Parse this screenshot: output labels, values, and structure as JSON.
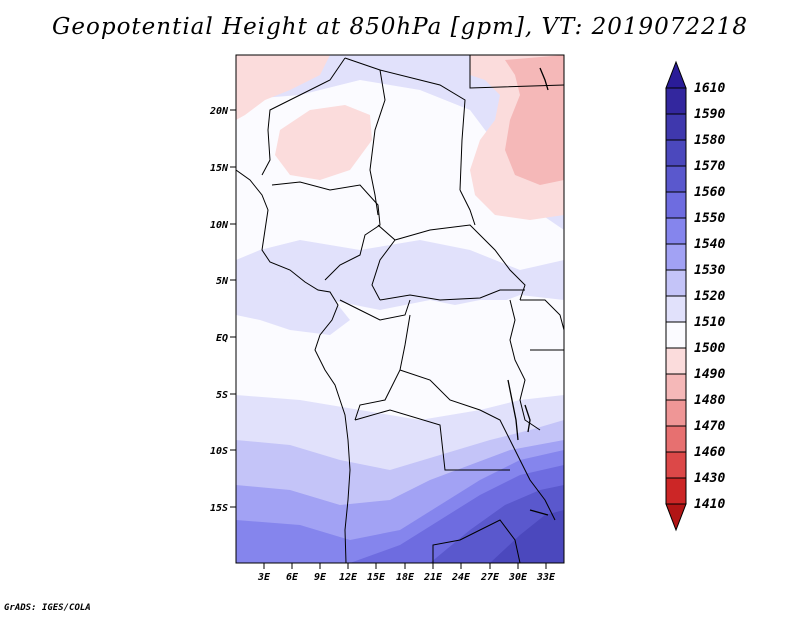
{
  "title": "Geopotential Height at 850hPa [gpm], VT: 2019072218",
  "credit": "GrADS: IGES/COLA",
  "lat_labels": [
    "20N",
    "15N",
    "10N",
    "5N",
    "EQ",
    "5S",
    "10S",
    "15S"
  ],
  "lon_labels": [
    "3E",
    "6E",
    "9E",
    "12E",
    "15E",
    "18E",
    "21E",
    "24E",
    "27E",
    "30E",
    "33E"
  ],
  "colorbar": {
    "labels": [
      "1610",
      "1590",
      "1580",
      "1570",
      "1560",
      "1550",
      "1540",
      "1530",
      "1520",
      "1510",
      "1500",
      "1490",
      "1480",
      "1470",
      "1460",
      "1430",
      "1410"
    ],
    "colors": [
      "#2a1c98",
      "#33279e",
      "#3f38ad",
      "#4b48bd",
      "#5a58cd",
      "#6e6ce0",
      "#8585ed",
      "#a2a2f4",
      "#c4c4f8",
      "#e1e1fb",
      "#fbfbff",
      "#fbdcdc",
      "#f5b8b8",
      "#ef9696",
      "#e77070",
      "#dc4848",
      "#cc2626",
      "#b21515"
    ]
  }
}
